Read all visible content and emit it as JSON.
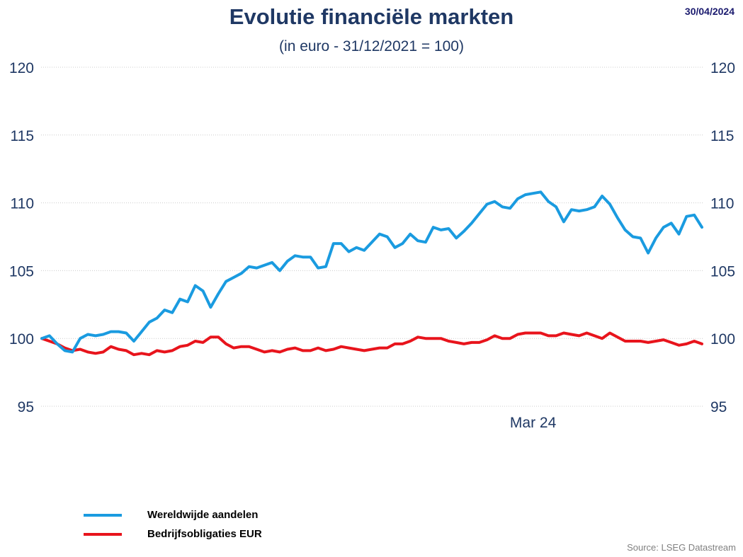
{
  "header": {
    "title": "Evolutie financiële markten",
    "subtitle": "(in euro - 31/12/2021 = 100)",
    "date": "30/04/2024"
  },
  "footer": {
    "source": "Source: LSEG Datastream"
  },
  "colors": {
    "equities": "#1a9be0",
    "bonds": "#e8141c",
    "text": "#1f3864",
    "grid": "#cccccc"
  },
  "chart_data": {
    "type": "line",
    "title": "Evolutie financiële markten",
    "subtitle": "(in euro - 31/12/2021 = 100)",
    "ylim": [
      95,
      120
    ],
    "yticks": [
      95,
      100,
      105,
      110,
      115,
      120
    ],
    "xtick_labels": [
      {
        "index": 64,
        "label": "Mar 24"
      }
    ],
    "grid": true,
    "legend_position": "bottom-left",
    "series": [
      {
        "name": "Wereldwijde aandelen",
        "color": "#1a9be0",
        "values": [
          100,
          100.2,
          99.6,
          99.1,
          99.0,
          100.0,
          100.3,
          100.2,
          100.3,
          100.5,
          100.5,
          100.4,
          99.8,
          100.5,
          101.2,
          101.5,
          102.1,
          101.9,
          102.9,
          102.7,
          103.9,
          103.5,
          102.3,
          103.3,
          104.2,
          104.5,
          104.8,
          105.3,
          105.2,
          105.4,
          105.6,
          105.0,
          105.7,
          106.1,
          106.0,
          106.0,
          105.2,
          105.3,
          107.0,
          107.0,
          106.4,
          106.7,
          106.5,
          107.1,
          107.7,
          107.5,
          106.7,
          107.0,
          107.7,
          107.2,
          107.1,
          108.2,
          108.0,
          108.1,
          107.4,
          107.9,
          108.5,
          109.2,
          109.9,
          110.1,
          109.7,
          109.6,
          110.3,
          110.6,
          110.7,
          110.8,
          110.1,
          109.7,
          108.6,
          109.5,
          109.4,
          109.5,
          109.7,
          110.5,
          109.9,
          108.9,
          108.0,
          107.5,
          107.4,
          106.3,
          107.4,
          108.2,
          108.5,
          107.7,
          109.0,
          109.1,
          108.2
        ]
      },
      {
        "name": "Bedrijfsobligaties EUR",
        "color": "#e8141c",
        "values": [
          100,
          99.8,
          99.6,
          99.3,
          99.1,
          99.2,
          99.0,
          98.9,
          99.0,
          99.4,
          99.2,
          99.1,
          98.8,
          98.9,
          98.8,
          99.1,
          99.0,
          99.1,
          99.4,
          99.5,
          99.8,
          99.7,
          100.1,
          100.1,
          99.6,
          99.3,
          99.4,
          99.4,
          99.2,
          99.0,
          99.1,
          99.0,
          99.2,
          99.3,
          99.1,
          99.1,
          99.3,
          99.1,
          99.2,
          99.4,
          99.3,
          99.2,
          99.1,
          99.2,
          99.3,
          99.3,
          99.6,
          99.6,
          99.8,
          100.1,
          100.0,
          100.0,
          100.0,
          99.8,
          99.7,
          99.6,
          99.7,
          99.7,
          99.9,
          100.2,
          100.0,
          100.0,
          100.3,
          100.4,
          100.4,
          100.4,
          100.2,
          100.2,
          100.4,
          100.3,
          100.2,
          100.4,
          100.2,
          100.0,
          100.4,
          100.1,
          99.8,
          99.8,
          99.8,
          99.7,
          99.8,
          99.9,
          99.7,
          99.5,
          99.6,
          99.8,
          99.6
        ]
      }
    ]
  }
}
